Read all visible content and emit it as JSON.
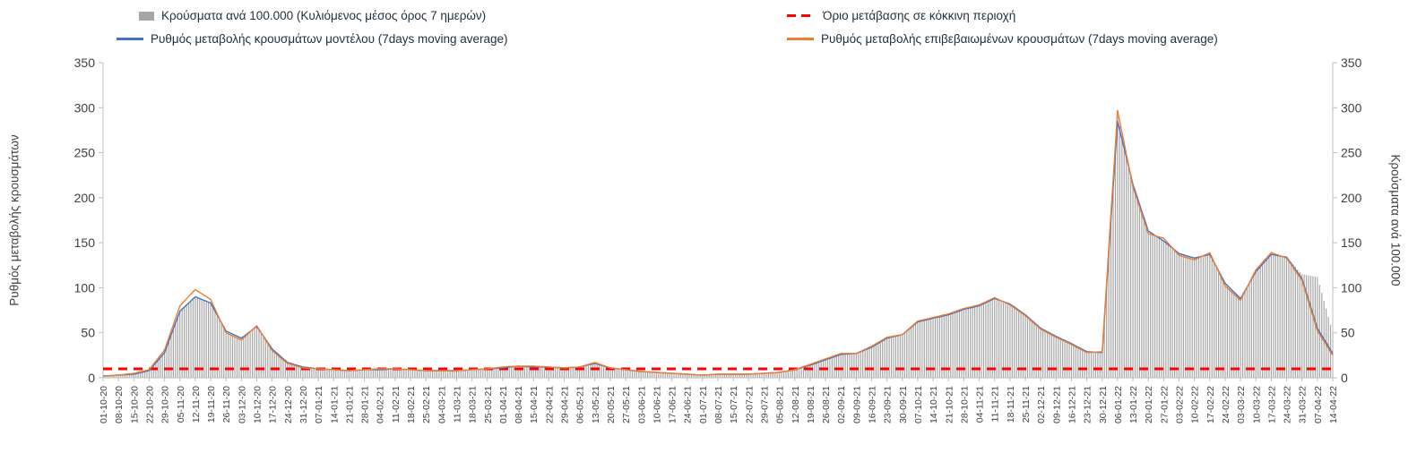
{
  "chart_data": {
    "type": "bar+line",
    "title": "",
    "legend_position": "top",
    "grid": false,
    "sampling": "weekly values read at each x tick label; original shows daily bars",
    "ylim": [
      0,
      350
    ],
    "y_ticks": [
      0,
      50,
      100,
      150,
      200,
      250,
      300,
      350
    ],
    "y_left_label": "Ρυθμός μεταβολής κρουσμάτων",
    "y_right_label": "Κρούσματα ανά 100.000",
    "x_tick_labels": [
      "01-10-20",
      "08-10-20",
      "15-10-20",
      "22-10-20",
      "29-10-20",
      "05-11-20",
      "12-11-20",
      "19-11-20",
      "26-11-20",
      "03-12-20",
      "10-12-20",
      "17-12-20",
      "24-12-20",
      "31-12-20",
      "07-01-21",
      "14-01-21",
      "21-01-21",
      "28-01-21",
      "04-02-21",
      "11-02-21",
      "18-02-21",
      "25-02-21",
      "04-03-21",
      "11-03-21",
      "18-03-21",
      "25-03-21",
      "01-04-21",
      "08-04-21",
      "15-04-21",
      "22-04-21",
      "29-04-21",
      "06-05-21",
      "13-05-21",
      "20-05-21",
      "27-05-21",
      "03-06-21",
      "10-06-21",
      "17-06-21",
      "24-06-21",
      "01-07-21",
      "08-07-21",
      "15-07-21",
      "22-07-21",
      "29-07-21",
      "05-08-21",
      "12-08-21",
      "19-08-21",
      "26-08-21",
      "02-09-21",
      "09-09-21",
      "16-09-21",
      "23-09-21",
      "30-09-21",
      "07-10-21",
      "14-10-21",
      "21-10-21",
      "28-10-21",
      "04-11-21",
      "11-11-21",
      "18-11-21",
      "25-11-21",
      "02-12-21",
      "09-12-21",
      "16-12-21",
      "23-12-21",
      "30-12-21",
      "06-01-22",
      "13-01-22",
      "20-01-22",
      "27-01-22",
      "03-02-22",
      "10-02-22",
      "17-02-22",
      "24-02-22",
      "03-03-22",
      "10-03-22",
      "17-03-22",
      "24-03-22",
      "31-03-22",
      "07-04-22",
      "14-04-22"
    ],
    "series": [
      {
        "name": "Κρούσματα ανά 100.000 (Κυλιόμενος μέσος όρος 7 ημερών)",
        "type": "bar",
        "axis": "right",
        "color": "#a6a6a6",
        "values": [
          2,
          3,
          4,
          8,
          28,
          75,
          90,
          84,
          51,
          43,
          56,
          31,
          16,
          12,
          10,
          9,
          8,
          9,
          9,
          10,
          9,
          8,
          8,
          8,
          9,
          10,
          11,
          13,
          12,
          12,
          11,
          12,
          16,
          11,
          9,
          7,
          6,
          5,
          4,
          3,
          4,
          4,
          4,
          5,
          6,
          9,
          14,
          20,
          26,
          27,
          34,
          44,
          48,
          61,
          65,
          70,
          75,
          80,
          87,
          81,
          70,
          55,
          46,
          38,
          29,
          28,
          290,
          215,
          163,
          152,
          138,
          133,
          136,
          104,
          88,
          118,
          136,
          134,
          115,
          112,
          50
        ]
      },
      {
        "name": "Ρυθμός μεταβολής κρουσμάτων μοντέλου (7days moving average)",
        "type": "line",
        "axis": "left",
        "color": "#4472c4",
        "values": [
          2,
          3,
          4,
          8,
          28,
          74,
          90,
          83,
          52,
          44,
          57,
          32,
          17,
          12,
          10,
          9,
          8,
          9,
          9,
          10,
          9,
          8,
          8,
          8,
          9,
          10,
          11,
          13,
          12,
          12,
          11,
          12,
          16,
          11,
          9,
          7,
          6,
          5,
          4,
          3,
          4,
          4,
          4,
          5,
          6,
          9,
          14,
          20,
          26,
          27,
          34,
          44,
          48,
          62,
          66,
          70,
          76,
          80,
          88,
          82,
          70,
          55,
          46,
          38,
          29,
          28,
          285,
          215,
          163,
          152,
          138,
          133,
          137,
          105,
          88,
          118,
          137,
          134,
          110,
          55,
          27
        ]
      },
      {
        "name": "Ρυθμός μεταβολής επιβεβαιωμένων κρουσμάτων (7days moving average)",
        "type": "line",
        "axis": "left",
        "color": "#ed7d31",
        "values": [
          2,
          3,
          5,
          9,
          31,
          80,
          98,
          87,
          50,
          42,
          58,
          30,
          16,
          11,
          10,
          9,
          8,
          9,
          10,
          10,
          9,
          8,
          8,
          8,
          9,
          10,
          12,
          13,
          13,
          12,
          11,
          12,
          17,
          11,
          9,
          7,
          6,
          5,
          4,
          3,
          4,
          4,
          4,
          5,
          6,
          9,
          15,
          21,
          27,
          27,
          35,
          45,
          48,
          63,
          67,
          71,
          77,
          81,
          89,
          81,
          69,
          54,
          45,
          37,
          28,
          29,
          297,
          212,
          160,
          155,
          136,
          131,
          139,
          102,
          86,
          120,
          139,
          133,
          108,
          52,
          25
        ]
      },
      {
        "name": "Όριο μετάβασης σε κόκκινη περιοχή",
        "type": "threshold",
        "axis": "left",
        "color": "#ff0000",
        "value": 10
      }
    ]
  }
}
